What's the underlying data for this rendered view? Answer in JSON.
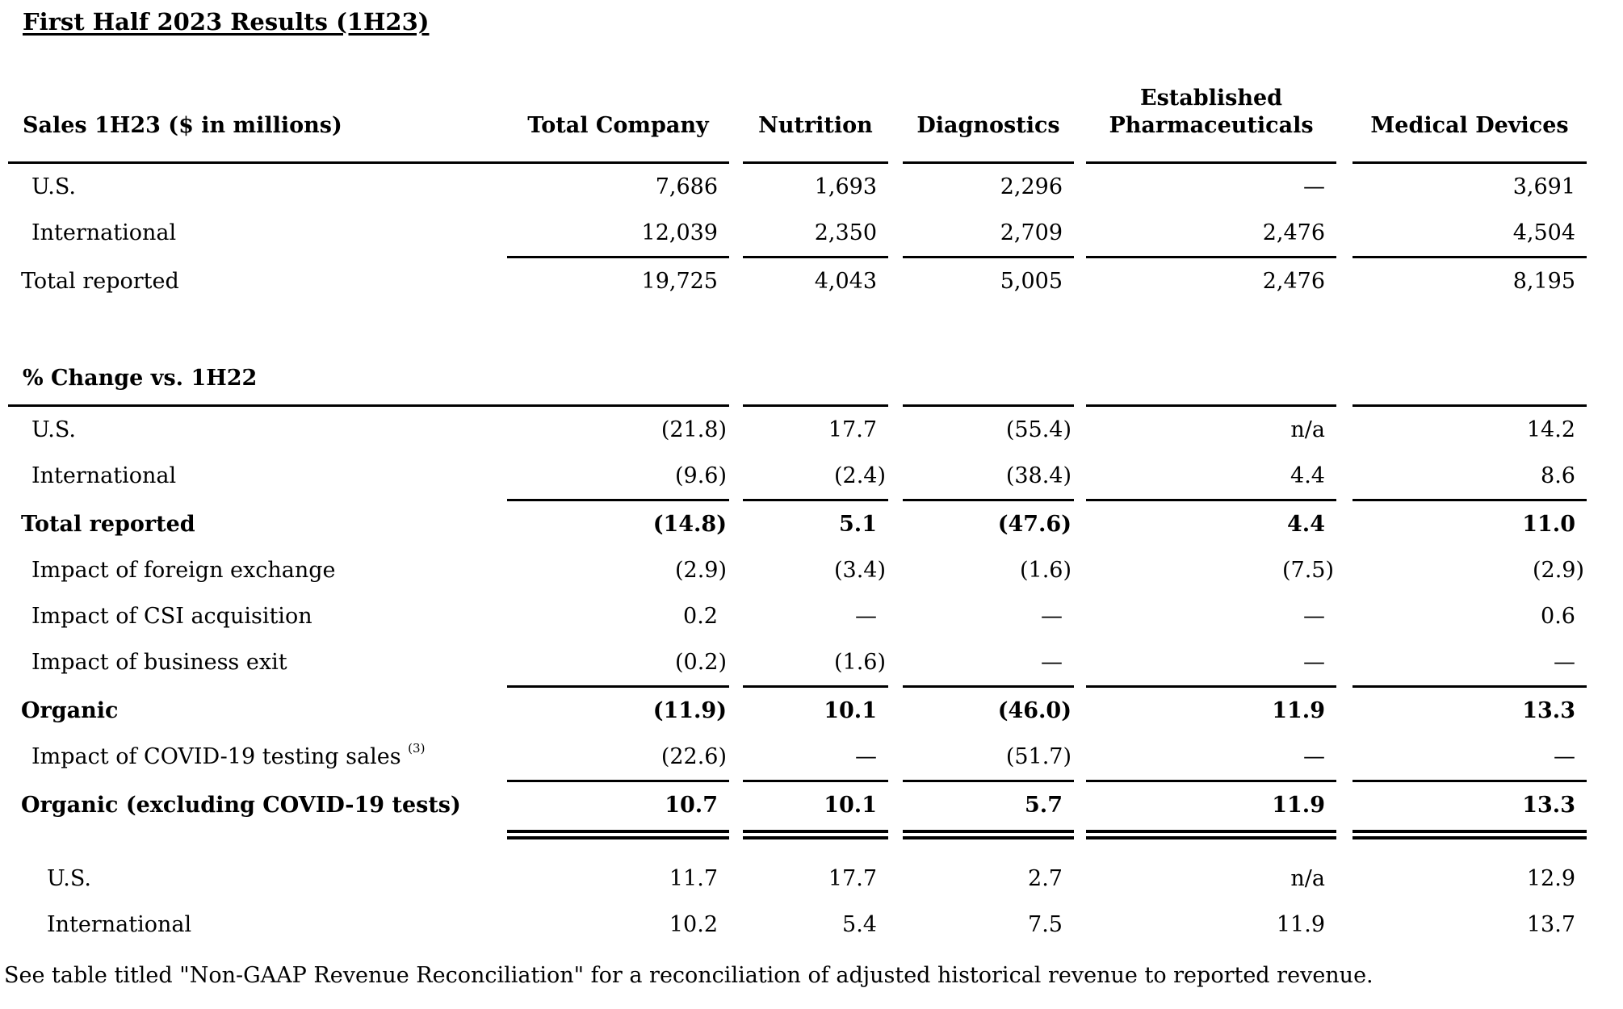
{
  "title": "First Half 2023 Results (1H23)",
  "table": {
    "row_label_header": "Sales 1H23 ($ in millions)",
    "columns": [
      {
        "lines": [
          "Total Company"
        ]
      },
      {
        "lines": [
          "Nutrition"
        ]
      },
      {
        "lines": [
          "Diagnostics"
        ]
      },
      {
        "lines": [
          "Established",
          "Pharmaceuticals"
        ]
      },
      {
        "lines": [
          "Medical Devices"
        ]
      }
    ],
    "sections": [
      {
        "name": "sales",
        "heading": null,
        "rows": [
          {
            "label": "U.S.",
            "indent": 1,
            "bold": false,
            "rule_above": "lead",
            "values": [
              "7,686",
              "1,693",
              "2,296",
              "—",
              "3,691"
            ]
          },
          {
            "label": "International",
            "indent": 1,
            "bold": false,
            "rule_above": "none",
            "values": [
              "12,039",
              "2,350",
              "2,709",
              "2,476",
              "4,504"
            ]
          },
          {
            "label": "Total reported",
            "indent": 0,
            "bold": false,
            "rule_above": "cols",
            "values": [
              "19,725",
              "4,043",
              "5,005",
              "2,476",
              "8,195"
            ]
          }
        ]
      },
      {
        "name": "pct-change-vs-1h22",
        "heading": "% Change vs. 1H22",
        "rows": [
          {
            "label": "U.S.",
            "indent": 1,
            "bold": false,
            "rule_above": "lead",
            "values": [
              "(21.8)",
              "17.7",
              "(55.4)",
              "n/a",
              "14.2"
            ]
          },
          {
            "label": "International",
            "indent": 1,
            "bold": false,
            "rule_above": "none",
            "values": [
              "(9.6)",
              "(2.4)",
              "(38.4)",
              "4.4",
              "8.6"
            ]
          },
          {
            "label": "Total reported",
            "indent": 0,
            "bold": true,
            "rule_above": "cols",
            "values": [
              "(14.8)",
              "5.1",
              "(47.6)",
              "4.4",
              "11.0"
            ]
          },
          {
            "label": "Impact of foreign exchange",
            "indent": 1,
            "bold": false,
            "rule_above": "none",
            "values": [
              "(2.9)",
              "(3.4)",
              "(1.6)",
              "(7.5)",
              "(2.9)"
            ]
          },
          {
            "label": "Impact of CSI acquisition",
            "indent": 1,
            "bold": false,
            "rule_above": "none",
            "values": [
              "0.2",
              "—",
              "—",
              "—",
              "0.6"
            ]
          },
          {
            "label": "Impact of business exit",
            "indent": 1,
            "bold": false,
            "rule_above": "none",
            "values": [
              "(0.2)",
              "(1.6)",
              "—",
              "—",
              "—"
            ]
          },
          {
            "label": "Organic",
            "indent": 0,
            "bold": true,
            "rule_above": "cols",
            "values": [
              "(11.9)",
              "10.1",
              "(46.0)",
              "11.9",
              "13.3"
            ]
          },
          {
            "label": "Impact of COVID-19 testing sales",
            "sup": "(3)",
            "indent": 1,
            "bold": false,
            "rule_above": "none",
            "values": [
              "(22.6)",
              "—",
              "(51.7)",
              "—",
              "—"
            ]
          },
          {
            "label": "Organic (excluding COVID-19 tests)",
            "indent": 0,
            "bold": true,
            "rule_above": "cols",
            "rule_below": "double",
            "values": [
              "10.7",
              "10.1",
              "5.7",
              "11.9",
              "13.3"
            ]
          }
        ]
      },
      {
        "name": "organic-ex-covid-detail",
        "heading": null,
        "rows": [
          {
            "label": "U.S.",
            "indent": 2,
            "bold": false,
            "rule_above": "none",
            "values": [
              "11.7",
              "17.7",
              "2.7",
              "n/a",
              "12.9"
            ]
          },
          {
            "label": "International",
            "indent": 2,
            "bold": false,
            "rule_above": "none",
            "values": [
              "10.2",
              "5.4",
              "7.5",
              "11.9",
              "13.7"
            ]
          }
        ]
      }
    ]
  },
  "footnote": "See table titled \"Non-GAAP Revenue Reconciliation\" for a reconciliation of adjusted historical revenue to reported revenue."
}
